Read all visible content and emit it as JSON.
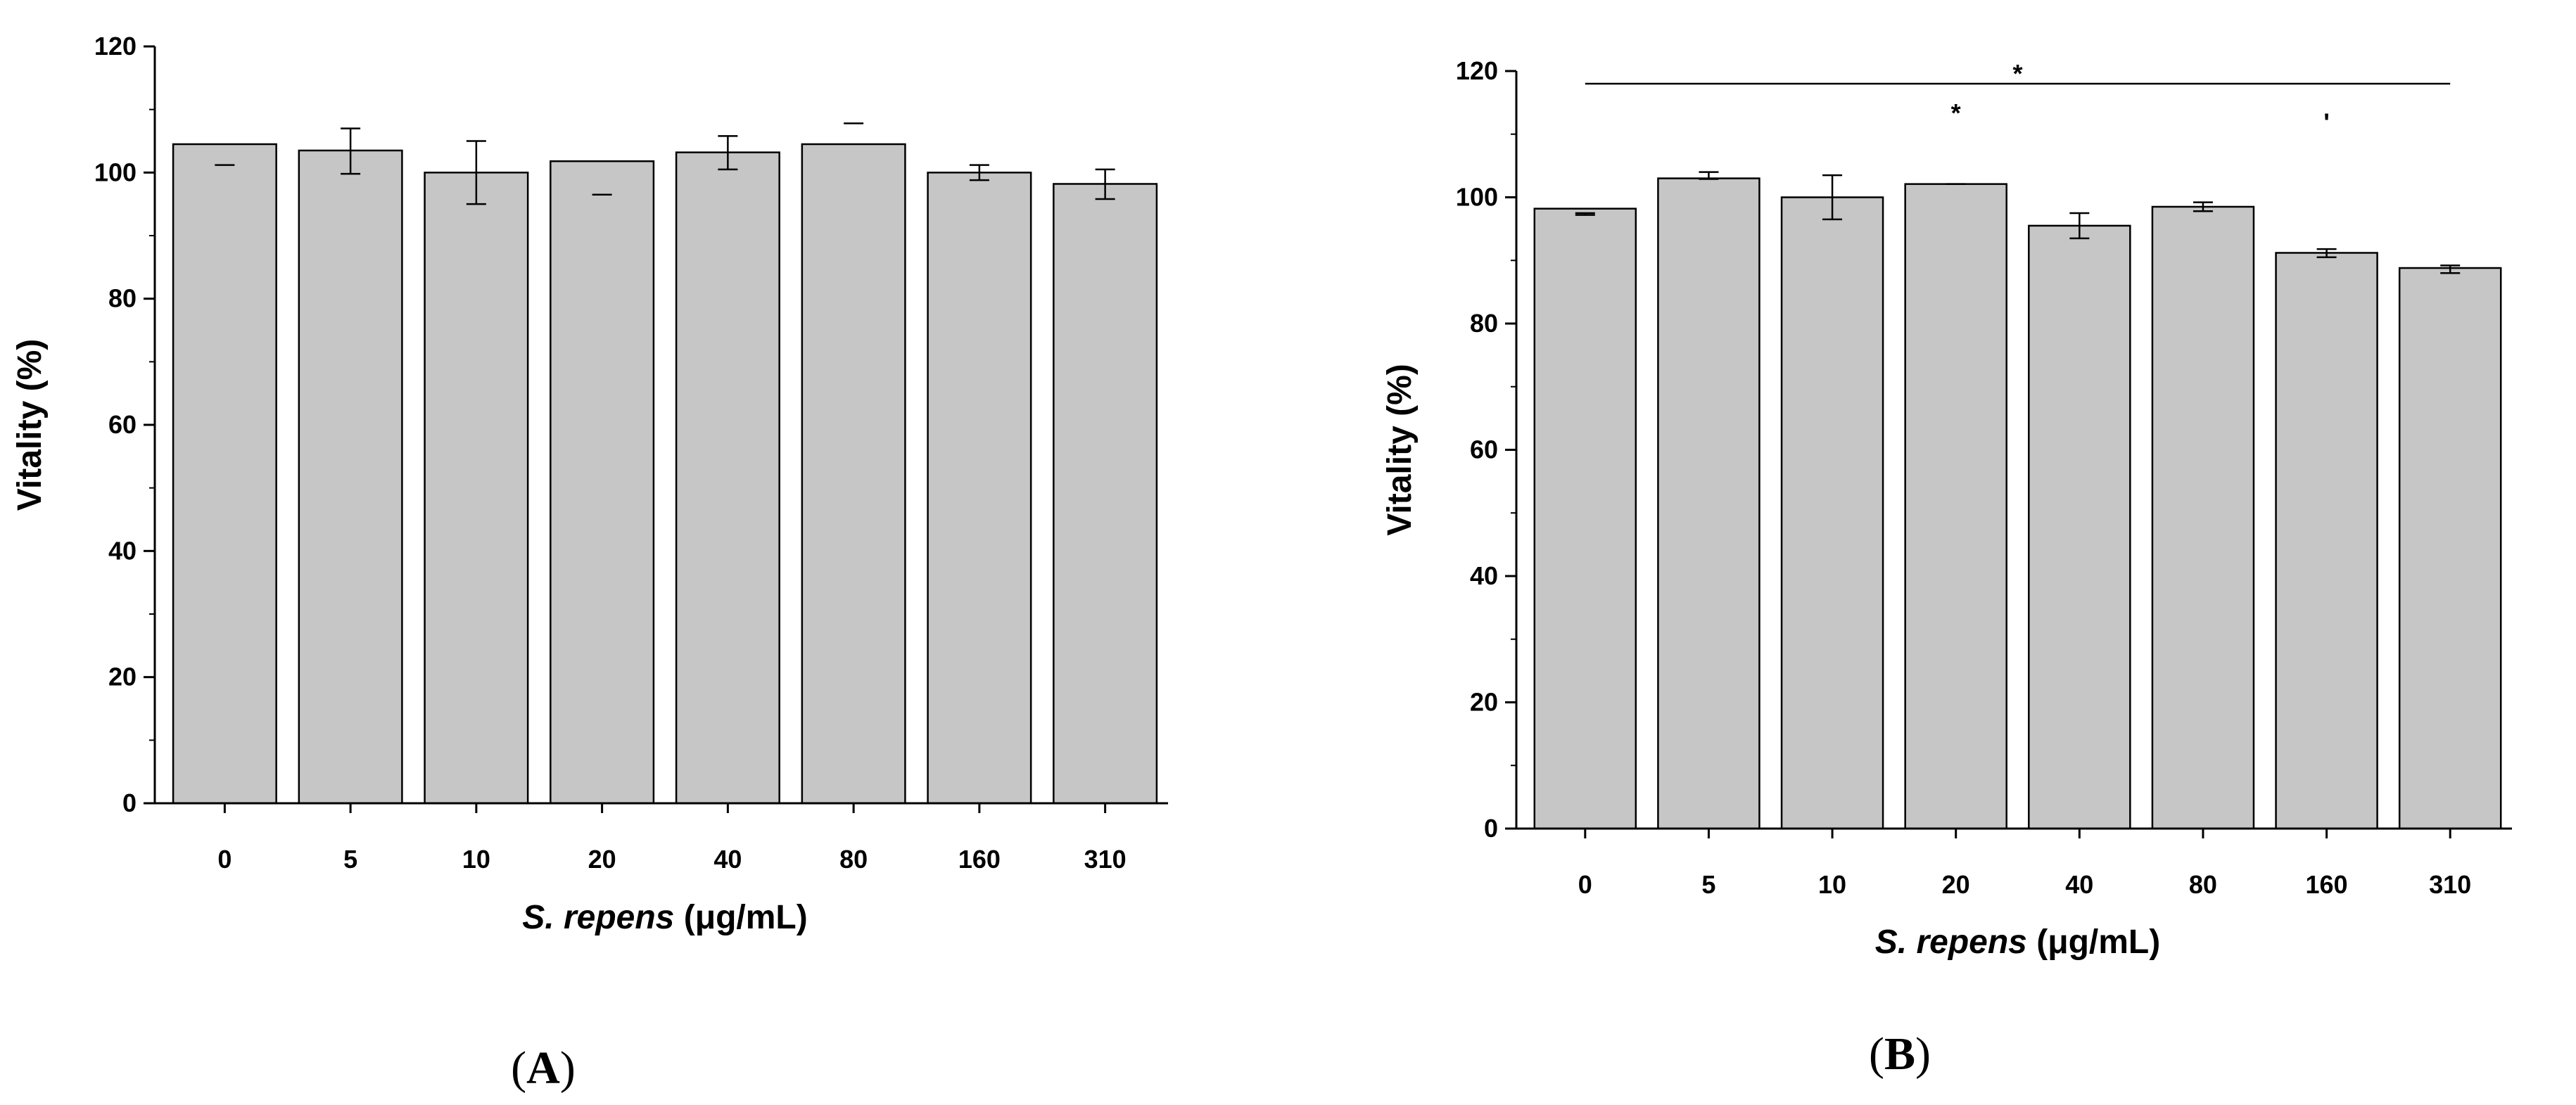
{
  "chart_data": [
    {
      "type": "bar",
      "panel_label": "A",
      "categories": [
        "0",
        "5",
        "10",
        "20",
        "40",
        "80",
        "160",
        "310"
      ],
      "values": [
        104.5,
        103.5,
        100,
        101.8,
        103.2,
        104.5,
        100,
        98.2
      ],
      "error_upper": [
        101.2,
        107,
        105,
        96.5,
        105.8,
        107.8,
        101.2,
        100.5
      ],
      "error_lower": [
        101.2,
        99.8,
        95,
        96.5,
        100.5,
        107.8,
        98.8,
        95.8
      ],
      "yticks": [
        "0",
        "20",
        "40",
        "60",
        "80",
        "100",
        "120"
      ],
      "ylim": [
        0,
        120
      ],
      "ylabel": "Vitality (%)",
      "xlabel_italic": "S. repens",
      "xlabel_unit": " (μg/mL)",
      "bar_color": "#c6c6c6",
      "significance": []
    },
    {
      "type": "bar",
      "panel_label": "B",
      "categories": [
        "0",
        "5",
        "10",
        "20",
        "40",
        "80",
        "160",
        "310"
      ],
      "values": [
        98.2,
        103,
        100,
        102.1,
        95.5,
        98.5,
        91.2,
        88.8
      ],
      "error_upper": [
        97.5,
        104,
        103.5,
        102.1,
        97.5,
        99.2,
        91.8,
        89.2
      ],
      "error_lower": [
        97.2,
        102.9,
        96.5,
        102.1,
        93.5,
        97.8,
        90.5,
        88
      ],
      "yticks": [
        "0",
        "20",
        "40",
        "60",
        "80",
        "100",
        "120"
      ],
      "ylim": [
        0,
        120
      ],
      "ylabel": "Vitality (%)",
      "xlabel_italic": "S. repens",
      "xlabel_unit": " (μg/mL)",
      "bar_color": "#c6c6c6",
      "significance": [
        {
          "label": "*",
          "kind": "bracket",
          "from": 0,
          "to": 7,
          "y": 118
        },
        {
          "label": "*",
          "kind": "star",
          "at": 3,
          "y": 112
        },
        {
          "label": "'",
          "kind": "star",
          "at": 6,
          "y": 110.5
        }
      ]
    }
  ]
}
